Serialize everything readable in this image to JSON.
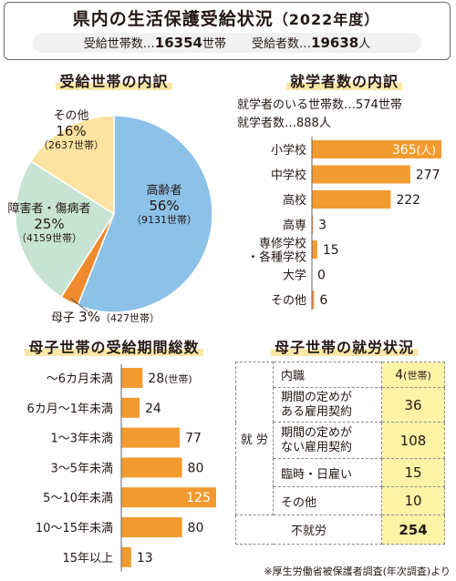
{
  "header": {
    "title": "県内の生活保護受給状況",
    "year": "（2022年度）",
    "households_label": "受給世帯数…",
    "households_value": "16354",
    "households_unit": "世帯",
    "recipients_label": "受給者数…",
    "recipients_value": "19638",
    "recipients_unit": "人"
  },
  "colors": {
    "bar": "#f29b30",
    "elderly": "#8cc1e8",
    "mother": "#f08a2f",
    "disabled": "#c7e3d3",
    "other": "#fce3a1",
    "highlight": "#fff3a6"
  },
  "chart_data": [
    {
      "type": "pie",
      "title": "受給世帯の内訳",
      "slices": [
        {
          "name": "高齢者",
          "percent": 56,
          "households": 9131,
          "label": "高齢者",
          "pct_text": "56%",
          "count_text": "（9131世帯）",
          "color": "#8cc1e8"
        },
        {
          "name": "母子",
          "percent": 3,
          "households": 427,
          "label": "母子",
          "pct_text": "3%",
          "count_text": "（427世帯）",
          "color": "#f08a2f"
        },
        {
          "name": "障害者・傷病者",
          "percent": 25,
          "households": 4159,
          "label": "障害者・傷病者",
          "pct_text": "25%",
          "count_text": "（4159世帯）",
          "color": "#c7e3d3"
        },
        {
          "name": "その他",
          "percent": 16,
          "households": 2637,
          "label": "その他",
          "pct_text": "16%",
          "count_text": "（2637世帯）",
          "color": "#fce3a1"
        }
      ]
    },
    {
      "type": "bar",
      "title": "就学者数の内訳",
      "intro_line1": "就学者のいる世帯数…574世帯",
      "intro_line2": "就学者数…888人",
      "categories": [
        "小学校",
        "中学校",
        "高校",
        "高専",
        "専修学校・各種学校",
        "大学",
        "その他"
      ],
      "category_lines": [
        [
          "小学校"
        ],
        [
          "中学校"
        ],
        [
          "高校"
        ],
        [
          "高専"
        ],
        [
          "専修学校",
          "・各種学校"
        ],
        [
          "大学"
        ],
        [
          "その他"
        ]
      ],
      "values": [
        365,
        277,
        222,
        3,
        15,
        0,
        6
      ],
      "value_labels": [
        "365",
        "277",
        "222",
        "3",
        "15",
        "0",
        "6"
      ],
      "first_unit": "(人)",
      "xlim": [
        0,
        365
      ]
    },
    {
      "type": "bar",
      "title": "母子世帯の受給期間総数",
      "categories": [
        "～6カ月未満",
        "6カ月～1年未満",
        "1～3年未満",
        "3～5年未満",
        "5～10年未満",
        "10～15年未満",
        "15年以上"
      ],
      "values": [
        28,
        24,
        77,
        80,
        125,
        80,
        13
      ],
      "value_labels": [
        "28",
        "24",
        "77",
        "80",
        "125",
        "80",
        "13"
      ],
      "first_unit": "(世帯)",
      "xlim": [
        0,
        125
      ]
    },
    {
      "type": "table",
      "title": "母子世帯の就労状況",
      "group_label": "就 労",
      "rows": [
        {
          "label": "内職",
          "value": "4",
          "unit": "(世帯)"
        },
        {
          "label": "期間の定めがある雇用契約",
          "label_lines": [
            "期間の定めが",
            "ある雇用契約"
          ],
          "value": "36"
        },
        {
          "label": "期間の定めがない雇用契約",
          "label_lines": [
            "期間の定めが",
            "ない雇用契約"
          ],
          "value": "108"
        },
        {
          "label": "臨時・日雇い",
          "value": "15"
        },
        {
          "label": "その他",
          "value": "10"
        }
      ],
      "non_employed": {
        "label": "不就労",
        "value": "254"
      }
    }
  ],
  "source_note": "※厚生労働省被保護者調査(年次調査)より"
}
